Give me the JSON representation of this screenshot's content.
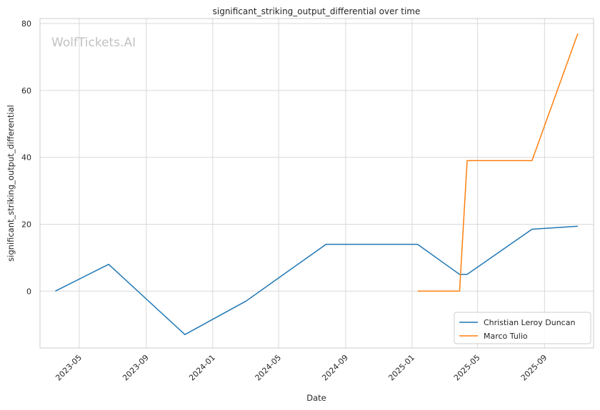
{
  "chart_data": {
    "type": "line",
    "title": "significant_striking_output_differential over time",
    "xlabel": "Date",
    "ylabel": "significant_striking_output_differential",
    "watermark": "WolfTickets.AI",
    "xlim": [
      "2023-02-18",
      "2025-11-30"
    ],
    "ylim": [
      -17,
      81.5
    ],
    "x_ticks": [
      "2023-05-01",
      "2023-09-01",
      "2024-01-01",
      "2024-05-01",
      "2024-09-01",
      "2025-01-01",
      "2025-05-01",
      "2025-09-01"
    ],
    "x_tick_labels": [
      "2023-05",
      "2023-09",
      "2024-01",
      "2024-05",
      "2024-09",
      "2025-01",
      "2025-05",
      "2025-09"
    ],
    "y_ticks": [
      0,
      20,
      40,
      60,
      80
    ],
    "y_tick_labels": [
      "0",
      "20",
      "40",
      "60",
      "80"
    ],
    "grid": true,
    "legend_position": "bottom-right",
    "series": [
      {
        "name": "Christian Leroy Duncan",
        "color": "#1f77b4",
        "points": [
          {
            "x": "2023-03-18",
            "y": 0
          },
          {
            "x": "2023-06-24",
            "y": 8
          },
          {
            "x": "2023-11-11",
            "y": -13
          },
          {
            "x": "2024-03-02",
            "y": -3
          },
          {
            "x": "2024-07-27",
            "y": 14
          },
          {
            "x": "2025-01-11",
            "y": 14
          },
          {
            "x": "2025-03-29",
            "y": 5
          },
          {
            "x": "2025-04-12",
            "y": 5
          },
          {
            "x": "2025-08-09",
            "y": 18.5
          },
          {
            "x": "2025-11-01",
            "y": 19.4
          }
        ]
      },
      {
        "name": "Marco Tulio",
        "color": "#ff7f0e",
        "points": [
          {
            "x": "2025-01-11",
            "y": 0
          },
          {
            "x": "2025-03-29",
            "y": 0
          },
          {
            "x": "2025-04-12",
            "y": 39
          },
          {
            "x": "2025-08-09",
            "y": 39
          },
          {
            "x": "2025-11-01",
            "y": 77
          }
        ]
      }
    ]
  }
}
